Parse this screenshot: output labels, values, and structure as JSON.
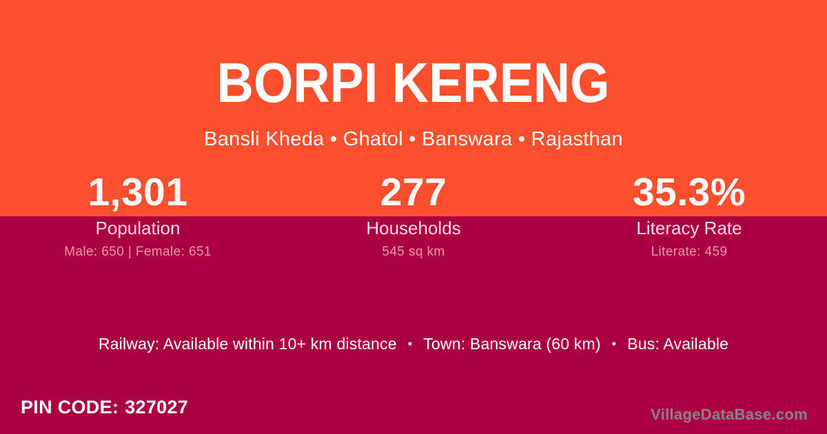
{
  "colors": {
    "orange": "#FC4F2D",
    "maroon": "#AA0144",
    "white": "#FFFFFF",
    "label_pink": "#F8DAE5",
    "detail_pink": "#EE92AF",
    "watermark_gray": "#8D7F8B"
  },
  "header": {
    "title": "BORPI KERENG",
    "breadcrumb": "Bansli Kheda • Ghatol • Banswara • Rajasthan"
  },
  "stats": [
    {
      "value": "1,301",
      "label": "Population",
      "detail": "Male: 650 | Female: 651"
    },
    {
      "value": "277",
      "label": "Households",
      "detail": "545 sq km"
    },
    {
      "value": "35.3%",
      "label": "Literacy Rate",
      "detail": "Literate: 459"
    }
  ],
  "info": {
    "separator": "•",
    "segments": [
      "Railway: Available within 10+ km distance",
      "Town: Banswara (60 km)",
      "Bus: Available"
    ]
  },
  "pin_code": {
    "label": "PIN CODE:",
    "value": "327027"
  },
  "watermark": "VillageDataBase.com"
}
